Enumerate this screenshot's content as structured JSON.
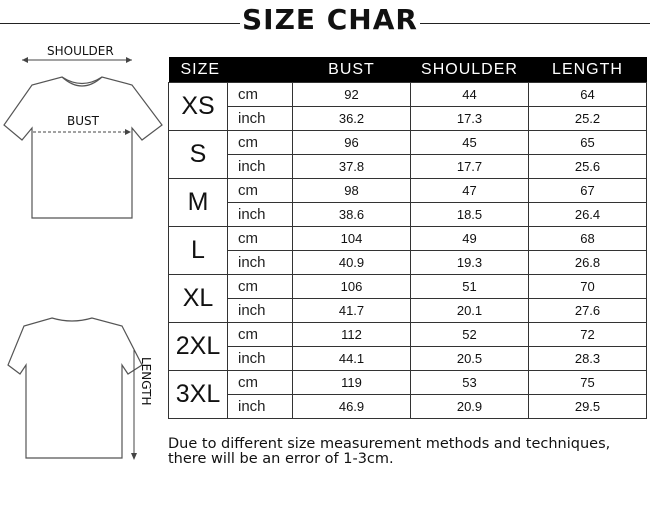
{
  "title": "SIZE CHAR",
  "diagram": {
    "shoulder_label": "SHOULDER",
    "bust_label": "BUST",
    "length_label": "LENGTH"
  },
  "table": {
    "headers": [
      "SIZE",
      "BUST",
      "SHOULDER",
      "LENGTH"
    ],
    "rows": [
      {
        "size": "XS",
        "cm": {
          "unit": "cm",
          "bust": "92",
          "shoulder": "44",
          "length": "64"
        },
        "inch": {
          "unit": "inch",
          "bust": "36.2",
          "shoulder": "17.3",
          "length": "25.2"
        }
      },
      {
        "size": "S",
        "cm": {
          "unit": "cm",
          "bust": "96",
          "shoulder": "45",
          "length": "65"
        },
        "inch": {
          "unit": "inch",
          "bust": "37.8",
          "shoulder": "17.7",
          "length": "25.6"
        }
      },
      {
        "size": "M",
        "cm": {
          "unit": "cm",
          "bust": "98",
          "shoulder": "47",
          "length": "67"
        },
        "inch": {
          "unit": "inch",
          "bust": "38.6",
          "shoulder": "18.5",
          "length": "26.4"
        }
      },
      {
        "size": "L",
        "cm": {
          "unit": "cm",
          "bust": "104",
          "shoulder": "49",
          "length": "68"
        },
        "inch": {
          "unit": "inch",
          "bust": "40.9",
          "shoulder": "19.3",
          "length": "26.8"
        }
      },
      {
        "size": "XL",
        "cm": {
          "unit": "cm",
          "bust": "106",
          "shoulder": "51",
          "length": "70"
        },
        "inch": {
          "unit": "inch",
          "bust": "41.7",
          "shoulder": "20.1",
          "length": "27.6"
        }
      },
      {
        "size": "2XL",
        "cm": {
          "unit": "cm",
          "bust": "112",
          "shoulder": "52",
          "length": "72"
        },
        "inch": {
          "unit": "inch",
          "bust": "44.1",
          "shoulder": "20.5",
          "length": "28.3"
        }
      },
      {
        "size": "3XL",
        "cm": {
          "unit": "cm",
          "bust": "119",
          "shoulder": "53",
          "length": "75"
        },
        "inch": {
          "unit": "inch",
          "bust": "46.9",
          "shoulder": "20.9",
          "length": "29.5"
        }
      }
    ]
  },
  "note": "Due to different size measurement methods and techniques, there will be an error of 1-3cm."
}
